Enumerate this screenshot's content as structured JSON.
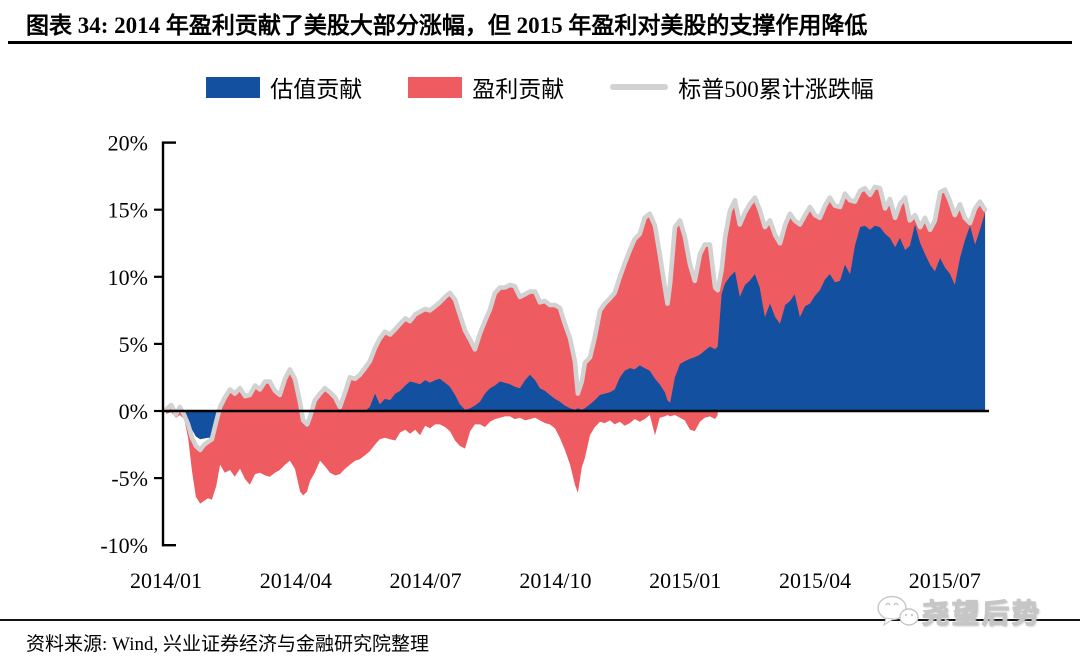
{
  "header": {
    "title": "图表 34:  2014 年盈利贡献了美股大部分涨幅，但 2015 年盈利对美股的支撑作用降低"
  },
  "legend": {
    "items": [
      {
        "label": "估值贡献",
        "series_key": "valuation",
        "marker": "rect"
      },
      {
        "label": "盈利贡献",
        "series_key": "earnings",
        "marker": "rect"
      },
      {
        "label": "标普500累计涨跌幅",
        "series_key": "sp500",
        "marker": "line"
      }
    ]
  },
  "footer": {
    "source": "资料来源:  Wind, 兴业证券经济与金融研究院整理",
    "watermark": "尧望后势"
  },
  "chart_data": {
    "type": "area",
    "subtype": "stacked-area-with-line",
    "title": "2014年盈利贡献了美股大部分涨幅，但2015年盈利对美股的支撑作用降低",
    "xlabel": "",
    "ylabel": "",
    "ylim": [
      -10,
      20
    ],
    "grid": false,
    "legend_position": "top-center",
    "colors": {
      "valuation": "#1351a0",
      "earnings": "#ee5c61",
      "sp500": "#d2d2d2",
      "axis": "#000000"
    },
    "y_ticks": [
      {
        "label": "20%",
        "v": 20
      },
      {
        "label": "15%",
        "v": 15
      },
      {
        "label": "10%",
        "v": 10
      },
      {
        "label": "5%",
        "v": 5
      },
      {
        "label": "0%",
        "v": 0
      },
      {
        "label": "-5%",
        "v": -5
      },
      {
        "label": "-10%",
        "v": -10
      }
    ],
    "x_ticks": [
      {
        "label": "2014/01",
        "m": 0
      },
      {
        "label": "2014/04",
        "m": 3
      },
      {
        "label": "2014/07",
        "m": 6
      },
      {
        "label": "2014/10",
        "m": 9
      },
      {
        "label": "2015/01",
        "m": 12
      },
      {
        "label": "2015/04",
        "m": 15
      },
      {
        "label": "2015/07",
        "m": 18
      }
    ],
    "series_names": [
      "估值贡献",
      "盈利贡献",
      "标普500累计涨跌幅"
    ],
    "columns": [
      "months_since_2014_01",
      "sp500_cum_pct_gray_line_and_red_top",
      "red_area_outer_edge_pct",
      "blue_valuation_edge_pct"
    ],
    "points": [
      [
        0.0,
        0.1,
        -0.2,
        0.0
      ],
      [
        0.12,
        0.45,
        -0.1,
        0.1
      ],
      [
        0.23,
        -0.25,
        -0.5,
        -0.15
      ],
      [
        0.32,
        0.3,
        -0.3,
        0.0
      ],
      [
        0.42,
        -0.3,
        -0.6,
        -0.2
      ],
      [
        0.51,
        -1.0,
        -2.0,
        -0.6
      ],
      [
        0.6,
        -2.0,
        -4.5,
        -1.4
      ],
      [
        0.69,
        -2.6,
        -6.4,
        -1.9
      ],
      [
        0.79,
        -2.9,
        -6.9,
        -2.1
      ],
      [
        0.88,
        -2.5,
        -6.7,
        -2.05
      ],
      [
        0.97,
        -2.3,
        -6.5,
        -2.0
      ],
      [
        1.06,
        -2.1,
        -6.6,
        -2.0
      ],
      [
        1.16,
        -0.8,
        -5.6,
        -0.6
      ],
      [
        1.25,
        0.3,
        -4.0,
        0.0
      ],
      [
        1.36,
        1.0,
        -4.6,
        0.0
      ],
      [
        1.48,
        1.6,
        -4.4,
        0.0
      ],
      [
        1.59,
        1.3,
        -4.9,
        0.0
      ],
      [
        1.71,
        1.7,
        -4.3,
        0.0
      ],
      [
        1.83,
        1.1,
        -5.1,
        0.0
      ],
      [
        1.94,
        1.2,
        -5.5,
        0.0
      ],
      [
        2.06,
        1.9,
        -4.7,
        0.0
      ],
      [
        2.17,
        1.6,
        -4.6,
        0.0
      ],
      [
        2.29,
        2.2,
        -4.8,
        0.0
      ],
      [
        2.4,
        2.2,
        -4.9,
        0.0
      ],
      [
        2.52,
        1.5,
        -4.6,
        0.0
      ],
      [
        2.63,
        1.2,
        -4.4,
        0.0
      ],
      [
        2.75,
        2.4,
        -4.0,
        0.0
      ],
      [
        2.86,
        3.1,
        -3.7,
        0.0
      ],
      [
        2.98,
        2.4,
        -4.3,
        0.0
      ],
      [
        3.1,
        0.6,
        -6.0,
        0.0
      ],
      [
        3.17,
        -0.7,
        -6.3,
        0.0
      ],
      [
        3.26,
        -1.0,
        -6.0,
        0.0
      ],
      [
        3.33,
        -0.4,
        -5.2,
        0.0
      ],
      [
        3.44,
        0.8,
        -4.6,
        0.0
      ],
      [
        3.56,
        1.3,
        -3.7,
        0.0
      ],
      [
        3.67,
        1.7,
        -4.1,
        0.0
      ],
      [
        3.79,
        1.4,
        -4.6,
        0.0
      ],
      [
        3.91,
        1.0,
        -4.8,
        0.0
      ],
      [
        4.02,
        0.3,
        -4.7,
        0.0
      ],
      [
        4.14,
        1.4,
        -4.3,
        0.0
      ],
      [
        4.25,
        2.5,
        -4.0,
        0.0
      ],
      [
        4.37,
        2.4,
        -3.7,
        0.0
      ],
      [
        4.48,
        2.7,
        -3.6,
        0.0
      ],
      [
        4.6,
        3.2,
        -3.3,
        0.0
      ],
      [
        4.71,
        3.7,
        -3.0,
        0.3
      ],
      [
        4.83,
        4.7,
        -2.5,
        1.3
      ],
      [
        4.94,
        5.4,
        -2.1,
        0.5
      ],
      [
        5.06,
        5.9,
        -2.0,
        0.9
      ],
      [
        5.18,
        5.7,
        -2.1,
        0.8
      ],
      [
        5.3,
        6.1,
        -2.2,
        1.3
      ],
      [
        5.41,
        6.5,
        -1.6,
        1.5
      ],
      [
        5.53,
        6.9,
        -1.4,
        1.9
      ],
      [
        5.64,
        6.7,
        -1.7,
        2.2
      ],
      [
        5.76,
        7.2,
        -1.4,
        2.1
      ],
      [
        5.87,
        7.4,
        -1.8,
        2.0
      ],
      [
        5.99,
        7.6,
        -1.1,
        2.3
      ],
      [
        6.1,
        7.5,
        -1.3,
        2.1
      ],
      [
        6.22,
        7.8,
        -1.0,
        2.3
      ],
      [
        6.33,
        8.1,
        -1.0,
        2.4
      ],
      [
        6.45,
        8.5,
        -1.2,
        2.1
      ],
      [
        6.56,
        8.8,
        -1.5,
        1.8
      ],
      [
        6.68,
        8.3,
        -2.2,
        1.2
      ],
      [
        6.79,
        7.2,
        -2.6,
        0.5
      ],
      [
        6.91,
        6.0,
        -2.8,
        0.1
      ],
      [
        7.03,
        5.3,
        -1.5,
        0.2
      ],
      [
        7.14,
        4.6,
        -1.0,
        0.4
      ],
      [
        7.26,
        5.8,
        -1.0,
        0.7
      ],
      [
        7.37,
        6.7,
        -1.2,
        1.3
      ],
      [
        7.49,
        7.6,
        -0.8,
        1.7
      ],
      [
        7.6,
        8.8,
        -0.6,
        1.9
      ],
      [
        7.72,
        9.2,
        -0.5,
        2.2
      ],
      [
        7.83,
        9.2,
        -0.4,
        2.1
      ],
      [
        7.95,
        9.4,
        -0.4,
        2.0
      ],
      [
        8.06,
        9.3,
        -0.6,
        1.8
      ],
      [
        8.18,
        8.5,
        -0.5,
        1.7
      ],
      [
        8.3,
        8.7,
        -0.7,
        2.3
      ],
      [
        8.41,
        8.9,
        -0.6,
        2.7
      ],
      [
        8.53,
        8.9,
        -0.5,
        2.3
      ],
      [
        8.64,
        8.1,
        -0.7,
        1.7
      ],
      [
        8.76,
        8.2,
        -0.9,
        1.5
      ],
      [
        8.87,
        7.9,
        -1.0,
        1.2
      ],
      [
        8.99,
        7.9,
        -1.3,
        0.9
      ],
      [
        9.1,
        7.7,
        -2.0,
        0.7
      ],
      [
        9.22,
        6.5,
        -2.9,
        0.4
      ],
      [
        9.34,
        5.4,
        -4.0,
        0.2
      ],
      [
        9.45,
        3.7,
        -5.5,
        0.1
      ],
      [
        9.52,
        1.3,
        -6.1,
        0.2
      ],
      [
        9.61,
        2.2,
        -4.2,
        0.1
      ],
      [
        9.68,
        3.6,
        -3.5,
        0.2
      ],
      [
        9.8,
        4.0,
        -1.8,
        0.5
      ],
      [
        9.91,
        5.5,
        -1.2,
        0.8
      ],
      [
        10.03,
        7.5,
        -0.8,
        1.2
      ],
      [
        10.14,
        8.0,
        -0.9,
        1.3
      ],
      [
        10.26,
        8.4,
        -0.7,
        1.4
      ],
      [
        10.37,
        8.8,
        -1.0,
        1.6
      ],
      [
        10.49,
        10.0,
        -0.8,
        2.5
      ],
      [
        10.6,
        11.0,
        -1.1,
        3.0
      ],
      [
        10.72,
        12.0,
        -0.9,
        3.2
      ],
      [
        10.83,
        12.8,
        -0.6,
        3.1
      ],
      [
        10.95,
        13.2,
        -0.8,
        3.4
      ],
      [
        11.06,
        14.4,
        -0.6,
        3.2
      ],
      [
        11.18,
        14.7,
        -0.3,
        3.0
      ],
      [
        11.3,
        13.8,
        -1.8,
        2.4
      ],
      [
        11.41,
        11.7,
        -0.5,
        2.0
      ],
      [
        11.53,
        9.2,
        -0.4,
        1.4
      ],
      [
        11.59,
        8.0,
        -0.3,
        0.8
      ],
      [
        11.65,
        9.5,
        -0.4,
        0.6
      ],
      [
        11.76,
        13.7,
        -0.3,
        2.5
      ],
      [
        11.88,
        14.2,
        -0.5,
        3.5
      ],
      [
        11.99,
        13.0,
        -0.7,
        3.7
      ],
      [
        12.11,
        10.9,
        -1.4,
        3.9
      ],
      [
        12.22,
        9.7,
        -1.5,
        4.0
      ],
      [
        12.34,
        11.7,
        -0.8,
        4.2
      ],
      [
        12.45,
        12.4,
        -0.5,
        4.5
      ],
      [
        12.57,
        12.4,
        -0.4,
        4.8
      ],
      [
        12.69,
        9.2,
        -0.6,
        4.6
      ],
      [
        12.75,
        9.0,
        -0.3,
        4.8
      ],
      [
        12.84,
        10.5,
        8.0,
        8.7
      ],
      [
        12.92,
        12.9,
        9.3,
        9.5
      ],
      [
        13.03,
        14.9,
        9.8,
        10.0
      ],
      [
        13.15,
        15.7,
        10.2,
        10.4
      ],
      [
        13.26,
        13.9,
        8.3,
        8.5
      ],
      [
        13.38,
        14.8,
        9.2,
        9.4
      ],
      [
        13.49,
        15.4,
        9.5,
        9.7
      ],
      [
        13.61,
        15.9,
        10.0,
        10.2
      ],
      [
        13.72,
        15.0,
        9.0,
        9.2
      ],
      [
        13.84,
        13.7,
        6.8,
        7.0
      ],
      [
        13.96,
        14.2,
        7.8,
        8.0
      ],
      [
        14.08,
        13.1,
        6.8,
        7.0
      ],
      [
        14.19,
        12.5,
        6.3,
        6.5
      ],
      [
        14.31,
        13.9,
        7.7,
        7.9
      ],
      [
        14.42,
        14.7,
        8.0,
        8.2
      ],
      [
        14.53,
        14.2,
        8.5,
        8.7
      ],
      [
        14.65,
        13.9,
        6.8,
        7.0
      ],
      [
        14.77,
        14.6,
        7.6,
        7.8
      ],
      [
        14.88,
        15.2,
        7.8,
        8.0
      ],
      [
        15.0,
        14.6,
        8.4,
        8.6
      ],
      [
        15.11,
        14.4,
        8.8,
        9.0
      ],
      [
        15.23,
        15.3,
        9.6,
        9.8
      ],
      [
        15.34,
        15.9,
        10.0,
        10.2
      ],
      [
        15.46,
        15.3,
        9.4,
        9.6
      ],
      [
        15.58,
        15.2,
        9.5,
        9.7
      ],
      [
        15.69,
        16.2,
        10.7,
        10.9
      ],
      [
        15.81,
        15.7,
        10.0,
        10.2
      ],
      [
        15.92,
        15.6,
        12.1,
        12.3
      ],
      [
        16.04,
        16.4,
        13.5,
        13.7
      ],
      [
        16.15,
        16.6,
        13.6,
        13.8
      ],
      [
        16.27,
        16.1,
        13.3,
        13.5
      ],
      [
        16.38,
        16.7,
        13.6,
        13.8
      ],
      [
        16.5,
        16.6,
        13.6,
        13.7
      ],
      [
        16.62,
        15.1,
        13.0,
        13.2
      ],
      [
        16.73,
        15.8,
        12.7,
        12.9
      ],
      [
        16.85,
        14.4,
        12.0,
        12.2
      ],
      [
        16.96,
        15.4,
        12.7,
        12.9
      ],
      [
        17.08,
        15.9,
        11.9,
        12.0
      ],
      [
        17.19,
        14.2,
        12.1,
        12.3
      ],
      [
        17.31,
        14.6,
        13.7,
        13.9
      ],
      [
        17.43,
        13.7,
        12.3,
        12.5
      ],
      [
        17.54,
        14.4,
        11.5,
        11.7
      ],
      [
        17.66,
        13.5,
        10.8,
        10.9
      ],
      [
        17.77,
        14.2,
        10.2,
        10.4
      ],
      [
        17.89,
        16.3,
        11.2,
        11.4
      ],
      [
        18.0,
        16.5,
        10.5,
        10.7
      ],
      [
        18.12,
        15.6,
        10.0,
        10.2
      ],
      [
        18.23,
        14.6,
        9.3,
        9.4
      ],
      [
        18.35,
        15.4,
        11.2,
        11.4
      ],
      [
        18.46,
        14.4,
        12.5,
        12.7
      ],
      [
        18.58,
        14.0,
        13.6,
        13.8
      ],
      [
        18.7,
        15.1,
        12.2,
        12.4
      ],
      [
        18.81,
        15.6,
        13.3,
        13.5
      ],
      [
        18.93,
        15.0,
        14.6,
        14.8
      ]
    ]
  }
}
